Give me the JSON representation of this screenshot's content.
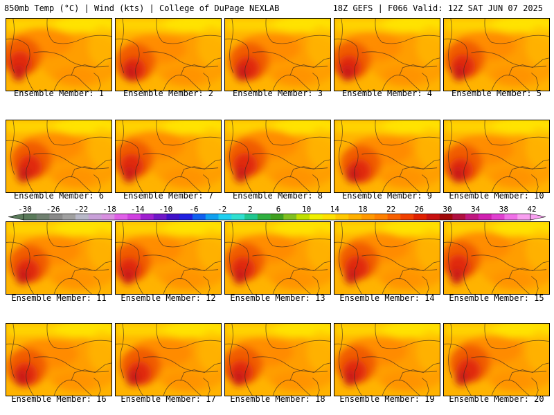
{
  "header": {
    "left_title": "850mb Temp (°C) | Wind (kts) | College of DuPage NEXLAB",
    "right_title": "18Z GEFS | F066 Valid: 12Z SAT JUN 07 2025"
  },
  "members": [
    {
      "label": "Ensemble Member: 1"
    },
    {
      "label": "Ensemble Member: 2"
    },
    {
      "label": "Ensemble Member: 3"
    },
    {
      "label": "Ensemble Member: 4"
    },
    {
      "label": "Ensemble Member: 5"
    },
    {
      "label": "Ensemble Member: 6"
    },
    {
      "label": "Ensemble Member: 7"
    },
    {
      "label": "Ensemble Member: 8"
    },
    {
      "label": "Ensemble Member: 9"
    },
    {
      "label": "Ensemble Member: 10"
    },
    {
      "label": "Ensemble Member: 11"
    },
    {
      "label": "Ensemble Member: 12"
    },
    {
      "label": "Ensemble Member: 13"
    },
    {
      "label": "Ensemble Member: 14"
    },
    {
      "label": "Ensemble Member: 15"
    },
    {
      "label": "Ensemble Member: 16"
    },
    {
      "label": "Ensemble Member: 17"
    },
    {
      "label": "Ensemble Member: 18"
    },
    {
      "label": "Ensemble Member: 19"
    },
    {
      "label": "Ensemble Member: 20"
    }
  ],
  "colorbar": {
    "labels": [
      "-30",
      "-26",
      "-22",
      "-18",
      "-14",
      "-10",
      "-6",
      "-2",
      "2",
      "6",
      "10",
      "14",
      "18",
      "22",
      "26",
      "30",
      "34",
      "38",
      "42"
    ],
    "colors": [
      "#5a7a5a",
      "#708070",
      "#8a8a8a",
      "#a0a0a0",
      "#b8b8c8",
      "#c8a0d8",
      "#d890e0",
      "#e060e8",
      "#d040e0",
      "#a020d0",
      "#7018c8",
      "#4010c8",
      "#2020e0",
      "#1060f0",
      "#10a0f0",
      "#20d0f0",
      "#30e0d0",
      "#20c890",
      "#30b040",
      "#40a020",
      "#80c020",
      "#c0e000",
      "#f0f000",
      "#ffe000",
      "#ffc800",
      "#ffb000",
      "#ff9800",
      "#ff8000",
      "#f86000",
      "#f04000",
      "#e02000",
      "#c81010",
      "#a00808",
      "#b01040",
      "#c01880",
      "#d020b0",
      "#e040d0",
      "#f070e8",
      "#f8a0f0"
    ]
  }
}
